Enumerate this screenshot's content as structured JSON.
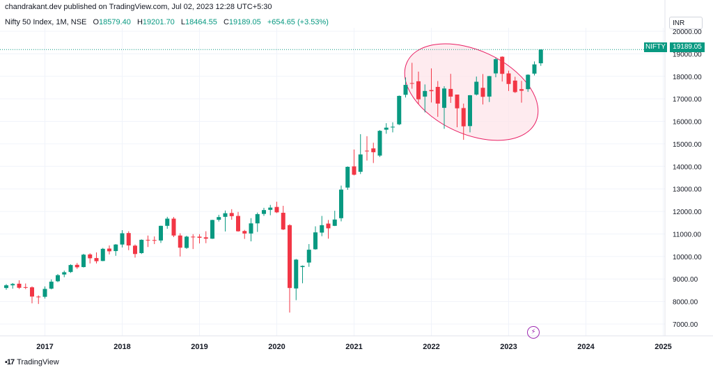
{
  "header": {
    "published": "chandrakant.dev published on TradingView.com, Jul 02, 2023 12:28 UTC+5:30"
  },
  "legend": {
    "symbol": "Nifty 50 Index, 1M, NSE",
    "open_label": "O",
    "open": "18579.40",
    "high_label": "H",
    "high": "19201.70",
    "low_label": "L",
    "low": "18464.55",
    "close_label": "C",
    "close": "19189.05",
    "change": "+654.65 (+3.53%)"
  },
  "currency": "INR",
  "price_tag": {
    "name": "NIFTY",
    "value": "19189.05"
  },
  "footer": {
    "brand": "TradingView"
  },
  "colors": {
    "up": "#089981",
    "down": "#f23645",
    "grid": "#f0f3fa",
    "ellipse_fill": "#fde4ea",
    "ellipse_stroke": "#e91e63",
    "last_price_line": "#089981"
  },
  "chart_data": {
    "type": "candlestick",
    "ylim": [
      6500,
      20200
    ],
    "y_ticks": [
      7000,
      8000,
      9000,
      10000,
      11000,
      12000,
      13000,
      14000,
      15000,
      16000,
      17000,
      18000,
      19000,
      20000
    ],
    "y_tick_labels": [
      "7000.00",
      "8000.00",
      "9000.00",
      "10000.00",
      "11000.00",
      "12000.00",
      "13000.00",
      "14000.00",
      "15000.00",
      "16000.00",
      "17000.00",
      "18000.00",
      "19000.00",
      "20000.00"
    ],
    "x_range": [
      "2016-07",
      "2025-07"
    ],
    "x_ticks": [
      {
        "label": "2017",
        "date": "2017-01"
      },
      {
        "label": "2018",
        "date": "2018-01"
      },
      {
        "label": "2019",
        "date": "2019-01"
      },
      {
        "label": "2020",
        "date": "2020-01"
      },
      {
        "label": "2021",
        "date": "2021-01"
      },
      {
        "label": "2022",
        "date": "2022-01"
      },
      {
        "label": "2023",
        "date": "2023-01"
      },
      {
        "label": "2024",
        "date": "2024-01"
      },
      {
        "label": "2025",
        "date": "2025-01"
      }
    ],
    "last_price": 19189.05,
    "candles": [
      {
        "date": "2016-07",
        "o": 8600,
        "h": 8770,
        "l": 8520,
        "c": 8720
      },
      {
        "date": "2016-08",
        "o": 8720,
        "h": 8820,
        "l": 8570,
        "c": 8780
      },
      {
        "date": "2016-09",
        "o": 8790,
        "h": 8940,
        "l": 8560,
        "c": 8610
      },
      {
        "date": "2016-10",
        "o": 8640,
        "h": 8800,
        "l": 8550,
        "c": 8630
      },
      {
        "date": "2016-11",
        "o": 8630,
        "h": 8670,
        "l": 7920,
        "c": 8220
      },
      {
        "date": "2016-12",
        "o": 8220,
        "h": 8270,
        "l": 7890,
        "c": 8190
      },
      {
        "date": "2017-01",
        "o": 8210,
        "h": 8670,
        "l": 8130,
        "c": 8560
      },
      {
        "date": "2017-02",
        "o": 8570,
        "h": 8980,
        "l": 8540,
        "c": 8880
      },
      {
        "date": "2017-03",
        "o": 8900,
        "h": 9220,
        "l": 8860,
        "c": 9170
      },
      {
        "date": "2017-04",
        "o": 9200,
        "h": 9370,
        "l": 9080,
        "c": 9300
      },
      {
        "date": "2017-05",
        "o": 9310,
        "h": 9650,
        "l": 9270,
        "c": 9620
      },
      {
        "date": "2017-06",
        "o": 9630,
        "h": 9710,
        "l": 9450,
        "c": 9520
      },
      {
        "date": "2017-07",
        "o": 9530,
        "h": 10120,
        "l": 9510,
        "c": 10080
      },
      {
        "date": "2017-08",
        "o": 10090,
        "h": 10140,
        "l": 9690,
        "c": 9920
      },
      {
        "date": "2017-09",
        "o": 9930,
        "h": 10180,
        "l": 9690,
        "c": 9790
      },
      {
        "date": "2017-10",
        "o": 9800,
        "h": 10380,
        "l": 9790,
        "c": 10340
      },
      {
        "date": "2017-11",
        "o": 10350,
        "h": 10490,
        "l": 10090,
        "c": 10230
      },
      {
        "date": "2017-12",
        "o": 10240,
        "h": 10550,
        "l": 10030,
        "c": 10530
      },
      {
        "date": "2018-01",
        "o": 10530,
        "h": 11170,
        "l": 10400,
        "c": 11030
      },
      {
        "date": "2018-02",
        "o": 11040,
        "h": 11120,
        "l": 10280,
        "c": 10490
      },
      {
        "date": "2018-03",
        "o": 10480,
        "h": 10530,
        "l": 9950,
        "c": 10110
      },
      {
        "date": "2018-04",
        "o": 10150,
        "h": 10760,
        "l": 10110,
        "c": 10740
      },
      {
        "date": "2018-05",
        "o": 10740,
        "h": 10930,
        "l": 10420,
        "c": 10720
      },
      {
        "date": "2018-06",
        "o": 10730,
        "h": 10890,
        "l": 10550,
        "c": 10710
      },
      {
        "date": "2018-07",
        "o": 10710,
        "h": 11370,
        "l": 10600,
        "c": 11360
      },
      {
        "date": "2018-08",
        "o": 11360,
        "h": 11760,
        "l": 11230,
        "c": 11680
      },
      {
        "date": "2018-09",
        "o": 11680,
        "h": 11750,
        "l": 10860,
        "c": 10930
      },
      {
        "date": "2018-10",
        "o": 10930,
        "h": 11030,
        "l": 10000,
        "c": 10390
      },
      {
        "date": "2018-11",
        "o": 10380,
        "h": 10920,
        "l": 10340,
        "c": 10880
      },
      {
        "date": "2018-12",
        "o": 10880,
        "h": 10990,
        "l": 10330,
        "c": 10860
      },
      {
        "date": "2019-01",
        "o": 10880,
        "h": 10990,
        "l": 10580,
        "c": 10830
      },
      {
        "date": "2019-02",
        "o": 10850,
        "h": 11120,
        "l": 10590,
        "c": 10790
      },
      {
        "date": "2019-03",
        "o": 10790,
        "h": 11630,
        "l": 10780,
        "c": 11620
      },
      {
        "date": "2019-04",
        "o": 11630,
        "h": 11850,
        "l": 11550,
        "c": 11750
      },
      {
        "date": "2019-05",
        "o": 11760,
        "h": 12040,
        "l": 11110,
        "c": 11920
      },
      {
        "date": "2019-06",
        "o": 11930,
        "h": 12100,
        "l": 11630,
        "c": 11790
      },
      {
        "date": "2019-07",
        "o": 11800,
        "h": 11980,
        "l": 11100,
        "c": 11120
      },
      {
        "date": "2019-08",
        "o": 11130,
        "h": 11180,
        "l": 10780,
        "c": 11020
      },
      {
        "date": "2019-09",
        "o": 11020,
        "h": 11700,
        "l": 10670,
        "c": 11470
      },
      {
        "date": "2019-10",
        "o": 11470,
        "h": 11950,
        "l": 11090,
        "c": 11880
      },
      {
        "date": "2019-11",
        "o": 11890,
        "h": 12160,
        "l": 11800,
        "c": 12060
      },
      {
        "date": "2019-12",
        "o": 12070,
        "h": 12290,
        "l": 11830,
        "c": 12170
      },
      {
        "date": "2020-01",
        "o": 12200,
        "h": 12430,
        "l": 11930,
        "c": 11960
      },
      {
        "date": "2020-02",
        "o": 11940,
        "h": 12250,
        "l": 11170,
        "c": 11200
      },
      {
        "date": "2020-03",
        "o": 11390,
        "h": 11430,
        "l": 7510,
        "c": 8600
      },
      {
        "date": "2020-04",
        "o": 8580,
        "h": 9890,
        "l": 8060,
        "c": 9860
      },
      {
        "date": "2020-05",
        "o": 9530,
        "h": 9600,
        "l": 8810,
        "c": 9580
      },
      {
        "date": "2020-06",
        "o": 9730,
        "h": 10550,
        "l": 9540,
        "c": 10300
      },
      {
        "date": "2020-07",
        "o": 10320,
        "h": 11340,
        "l": 10300,
        "c": 11070
      },
      {
        "date": "2020-08",
        "o": 11060,
        "h": 11800,
        "l": 10900,
        "c": 11390
      },
      {
        "date": "2020-09",
        "o": 11460,
        "h": 11620,
        "l": 10790,
        "c": 11250
      },
      {
        "date": "2020-10",
        "o": 11360,
        "h": 12030,
        "l": 11350,
        "c": 11640
      },
      {
        "date": "2020-11",
        "o": 11700,
        "h": 13150,
        "l": 11560,
        "c": 12970
      },
      {
        "date": "2020-12",
        "o": 13060,
        "h": 14000,
        "l": 12960,
        "c": 13980
      },
      {
        "date": "2021-01",
        "o": 14000,
        "h": 14750,
        "l": 13600,
        "c": 13630
      },
      {
        "date": "2021-02",
        "o": 13760,
        "h": 15430,
        "l": 13660,
        "c": 14530
      },
      {
        "date": "2021-03",
        "o": 14700,
        "h": 15340,
        "l": 14260,
        "c": 14690
      },
      {
        "date": "2021-04",
        "o": 14800,
        "h": 15050,
        "l": 14150,
        "c": 14630
      },
      {
        "date": "2021-05",
        "o": 14480,
        "h": 15610,
        "l": 14420,
        "c": 15580
      },
      {
        "date": "2021-06",
        "o": 15630,
        "h": 15920,
        "l": 15450,
        "c": 15720
      },
      {
        "date": "2021-07",
        "o": 15750,
        "h": 15960,
        "l": 15510,
        "c": 15760
      },
      {
        "date": "2021-08",
        "o": 15870,
        "h": 17150,
        "l": 15830,
        "c": 17130
      },
      {
        "date": "2021-09",
        "o": 17180,
        "h": 17950,
        "l": 17060,
        "c": 17620
      },
      {
        "date": "2021-10",
        "o": 17700,
        "h": 18600,
        "l": 17450,
        "c": 17670
      },
      {
        "date": "2021-11",
        "o": 17780,
        "h": 18210,
        "l": 16780,
        "c": 16980
      },
      {
        "date": "2021-12",
        "o": 17100,
        "h": 17640,
        "l": 16400,
        "c": 17350
      },
      {
        "date": "2022-01",
        "o": 17390,
        "h": 18350,
        "l": 16840,
        "c": 17340
      },
      {
        "date": "2022-02",
        "o": 17530,
        "h": 17790,
        "l": 16200,
        "c": 16790
      },
      {
        "date": "2022-03",
        "o": 16600,
        "h": 17560,
        "l": 15670,
        "c": 17460
      },
      {
        "date": "2022-04",
        "o": 17440,
        "h": 18110,
        "l": 16820,
        "c": 17100
      },
      {
        "date": "2022-05",
        "o": 17190,
        "h": 17130,
        "l": 15740,
        "c": 16580
      },
      {
        "date": "2022-06",
        "o": 16590,
        "h": 16790,
        "l": 15180,
        "c": 15780
      },
      {
        "date": "2022-07",
        "o": 15790,
        "h": 17170,
        "l": 15510,
        "c": 17160
      },
      {
        "date": "2022-08",
        "o": 17190,
        "h": 17990,
        "l": 17150,
        "c": 17760
      },
      {
        "date": "2022-09",
        "o": 17490,
        "h": 18100,
        "l": 16750,
        "c": 17090
      },
      {
        "date": "2022-10",
        "o": 17100,
        "h": 18020,
        "l": 16860,
        "c": 18010
      },
      {
        "date": "2022-11",
        "o": 18130,
        "h": 18820,
        "l": 17960,
        "c": 18760
      },
      {
        "date": "2022-12",
        "o": 18870,
        "h": 18890,
        "l": 17770,
        "c": 18110
      },
      {
        "date": "2023-01",
        "o": 18130,
        "h": 18250,
        "l": 17350,
        "c": 17660
      },
      {
        "date": "2023-02",
        "o": 17810,
        "h": 17980,
        "l": 17260,
        "c": 17300
      },
      {
        "date": "2023-03",
        "o": 17430,
        "h": 17800,
        "l": 16830,
        "c": 17360
      },
      {
        "date": "2023-04",
        "o": 17430,
        "h": 18090,
        "l": 17310,
        "c": 18070
      },
      {
        "date": "2023-05",
        "o": 18120,
        "h": 18660,
        "l": 18040,
        "c": 18530
      },
      {
        "date": "2023-06",
        "o": 18579.4,
        "h": 19201.7,
        "l": 18464.55,
        "c": 19189.05
      }
    ],
    "ellipse_annotation": {
      "start_date": "2021-10",
      "end_date": "2023-05",
      "center_date": "2022-07",
      "center_price": 17300,
      "rotation_deg": 25
    }
  }
}
